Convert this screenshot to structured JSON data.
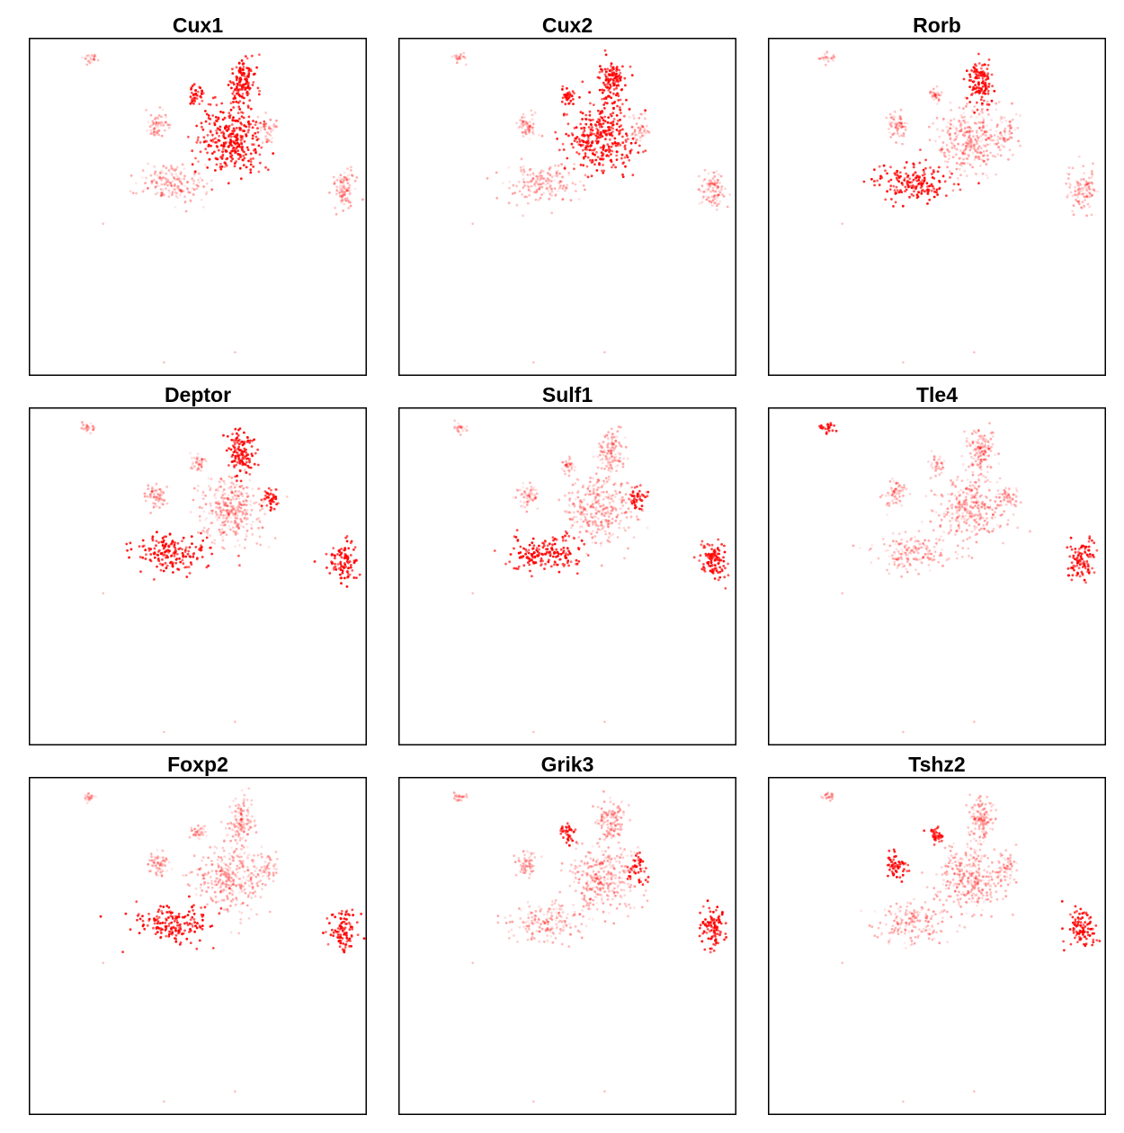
{
  "chart_data": [
    {
      "type": "scatter",
      "title": "Cux1",
      "xlim": [
        0,
        100
      ],
      "ylim": [
        0,
        100
      ],
      "grid": false,
      "legend": "none",
      "color": "#ff0000",
      "high_expression_regions": [
        "top-cluster",
        "central-cluster",
        "small-upper-cluster"
      ]
    },
    {
      "type": "scatter",
      "title": "Cux2",
      "xlim": [
        0,
        100
      ],
      "ylim": [
        0,
        100
      ],
      "grid": false,
      "legend": "none",
      "color": "#ff0000",
      "high_expression_regions": [
        "top-cluster",
        "central-cluster",
        "small-upper-cluster"
      ]
    },
    {
      "type": "scatter",
      "title": "Rorb",
      "xlim": [
        0,
        100
      ],
      "ylim": [
        0,
        100
      ],
      "grid": false,
      "legend": "none",
      "color": "#ff0000",
      "high_expression_regions": [
        "top-cluster",
        "lower-left-cluster"
      ]
    },
    {
      "type": "scatter",
      "title": "Deptor",
      "xlim": [
        0,
        100
      ],
      "ylim": [
        0,
        100
      ],
      "grid": false,
      "legend": "none",
      "color": "#ff0000",
      "high_expression_regions": [
        "top-cluster",
        "right-edge",
        "lower-left-cluster",
        "right-cluster"
      ]
    },
    {
      "type": "scatter",
      "title": "Sulf1",
      "xlim": [
        0,
        100
      ],
      "ylim": [
        0,
        100
      ],
      "grid": false,
      "legend": "none",
      "color": "#ff0000",
      "high_expression_regions": [
        "right-edge",
        "lower-left-cluster",
        "right-cluster"
      ]
    },
    {
      "type": "scatter",
      "title": "Tle4",
      "xlim": [
        0,
        100
      ],
      "ylim": [
        0,
        100
      ],
      "grid": false,
      "legend": "none",
      "color": "#ff0000",
      "high_expression_regions": [
        "right-cluster",
        "far-top-left-cluster"
      ]
    },
    {
      "type": "scatter",
      "title": "Foxp2",
      "xlim": [
        0,
        100
      ],
      "ylim": [
        0,
        100
      ],
      "grid": false,
      "legend": "none",
      "color": "#ff0000",
      "high_expression_regions": [
        "right-cluster",
        "lower-left-cluster"
      ]
    },
    {
      "type": "scatter",
      "title": "Grik3",
      "xlim": [
        0,
        100
      ],
      "ylim": [
        0,
        100
      ],
      "grid": false,
      "legend": "none",
      "color": "#ff0000",
      "high_expression_regions": [
        "right-cluster",
        "right-edge",
        "small-upper-cluster"
      ]
    },
    {
      "type": "scatter",
      "title": "Tshz2",
      "xlim": [
        0,
        100
      ],
      "ylim": [
        0,
        100
      ],
      "grid": false,
      "legend": "none",
      "color": "#ff0000",
      "high_expression_regions": [
        "small-upper-cluster",
        "right-cluster",
        "left-arm"
      ]
    }
  ]
}
